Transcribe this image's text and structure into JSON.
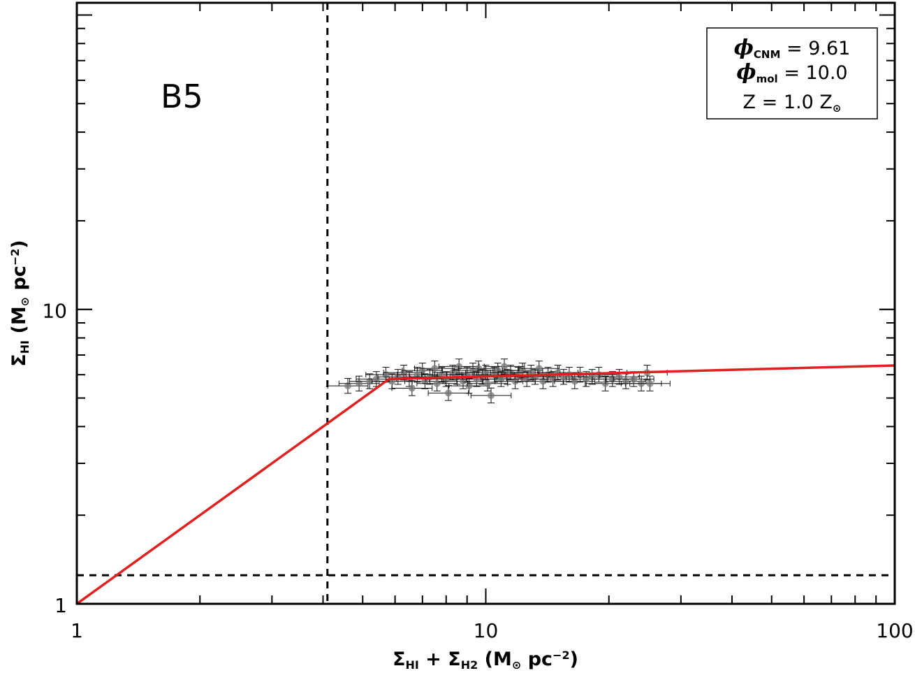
{
  "chart_data": {
    "type": "scatter",
    "panel_label": "B5",
    "xscale": "log",
    "yscale": "log",
    "xlim": [
      1,
      100
    ],
    "ylim": [
      1,
      110
    ],
    "x_ticks": [
      1,
      10,
      100
    ],
    "x_tick_labels": [
      "1",
      "10",
      "100"
    ],
    "y_ticks": [
      1,
      10
    ],
    "y_tick_labels": [
      "1",
      "10"
    ],
    "xlabel": {
      "parts": [
        {
          "t": "Σ",
          "sub": false
        },
        {
          "t": "HI",
          "sub": true
        },
        {
          "t": " + Σ",
          "sub": false
        },
        {
          "t": "H2",
          "sub": true
        },
        {
          "t": " (M",
          "sub": false
        },
        {
          "t": "⊙",
          "sub": true
        },
        {
          "t": " pc",
          "sub": false
        },
        {
          "t": "−2",
          "sup": true
        },
        {
          "t": ")",
          "sub": false
        }
      ]
    },
    "ylabel": {
      "parts": [
        {
          "t": "Σ",
          "sub": false
        },
        {
          "t": "HI",
          "sub": true
        },
        {
          "t": " (M",
          "sub": false
        },
        {
          "t": "⊙",
          "sub": true
        },
        {
          "t": " pc",
          "sub": false
        },
        {
          "t": "−2",
          "sup": true
        },
        {
          "t": ")",
          "sub": false
        }
      ]
    },
    "legend": {
      "lines": [
        {
          "sym": "ϕ",
          "sub": "CNM",
          "rest": " = 9.61"
        },
        {
          "sym": "ϕ",
          "sub": "mol",
          "rest": " = 10.0"
        },
        {
          "sym": "Z",
          "sub": "",
          "rest": " = 1.0 Z",
          "tail_sub": "⊙"
        }
      ],
      "position": "top-right"
    },
    "vertical_line_x": 4.1,
    "horizontal_line_y": 1.25,
    "model_line": {
      "color": "#e0201f",
      "points": [
        [
          1,
          1
        ],
        [
          5.8,
          5.8
        ],
        [
          100,
          6.45
        ]
      ]
    },
    "points": [
      [
        4.6,
        5.5
      ],
      [
        4.9,
        5.6
      ],
      [
        5.2,
        5.7
      ],
      [
        5.4,
        5.8
      ],
      [
        5.7,
        6.0
      ],
      [
        5.9,
        5.7
      ],
      [
        6.1,
        5.9
      ],
      [
        6.3,
        6.1
      ],
      [
        6.5,
        5.8
      ],
      [
        6.6,
        5.4
      ],
      [
        6.8,
        6.0
      ],
      [
        7.0,
        6.2
      ],
      [
        7.1,
        5.7
      ],
      [
        7.3,
        5.9
      ],
      [
        7.5,
        6.3
      ],
      [
        7.6,
        5.6
      ],
      [
        7.8,
        6.0
      ],
      [
        8.0,
        5.8
      ],
      [
        8.1,
        5.2
      ],
      [
        8.3,
        6.1
      ],
      [
        8.5,
        5.9
      ],
      [
        8.6,
        6.4
      ],
      [
        8.8,
        5.7
      ],
      [
        9.0,
        6.0
      ],
      [
        9.1,
        5.5
      ],
      [
        9.3,
        6.2
      ],
      [
        9.5,
        5.8
      ],
      [
        9.6,
        6.3
      ],
      [
        9.8,
        5.9
      ],
      [
        10.0,
        6.1
      ],
      [
        10.1,
        5.6
      ],
      [
        10.3,
        5.1
      ],
      [
        10.5,
        6.0
      ],
      [
        10.7,
        6.2
      ],
      [
        10.9,
        5.8
      ],
      [
        11.1,
        6.4
      ],
      [
        11.3,
        5.9
      ],
      [
        11.5,
        6.1
      ],
      [
        11.8,
        5.7
      ],
      [
        12.0,
        6.0
      ],
      [
        12.3,
        6.2
      ],
      [
        12.6,
        5.8
      ],
      [
        12.9,
        6.1
      ],
      [
        13.2,
        5.9
      ],
      [
        13.5,
        6.3
      ],
      [
        13.8,
        5.7
      ],
      [
        14.2,
        6.0
      ],
      [
        14.6,
        5.8
      ],
      [
        15.0,
        6.1
      ],
      [
        15.5,
        5.9
      ],
      [
        16.0,
        6.0
      ],
      [
        16.5,
        5.7
      ],
      [
        17.0,
        6.0
      ],
      [
        17.6,
        5.8
      ],
      [
        18.2,
        5.9
      ],
      [
        18.9,
        6.0
      ],
      [
        19.6,
        5.6
      ],
      [
        20.4,
        5.8
      ],
      [
        21.2,
        5.9
      ],
      [
        22.0,
        5.7
      ],
      [
        23.0,
        5.8
      ],
      [
        24.0,
        5.6
      ],
      [
        24.8,
        6.1
      ],
      [
        25.2,
        5.6
      ]
    ]
  }
}
